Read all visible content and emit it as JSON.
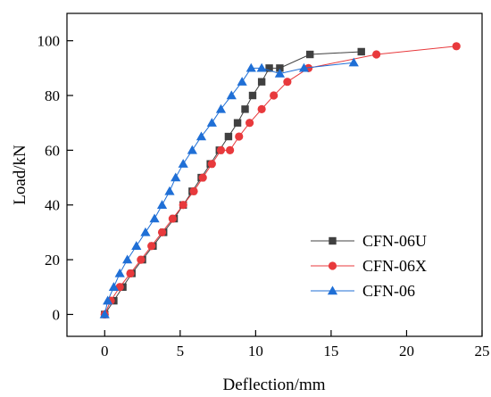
{
  "chart_data": {
    "type": "line",
    "title": "",
    "xlabel": "Deflection/mm",
    "ylabel": "Load/kN",
    "xlim": [
      -2.5,
      25
    ],
    "ylim": [
      -8,
      110
    ],
    "xticks": [
      0,
      5,
      10,
      15,
      20,
      25
    ],
    "yticks": [
      0,
      20,
      40,
      60,
      80,
      100
    ],
    "grid": false,
    "legend_position": "bottom-right",
    "series": [
      {
        "name": "CFN-06U",
        "color": "#404040",
        "marker": "square",
        "x": [
          0,
          0.6,
          1.2,
          1.8,
          2.5,
          3.2,
          3.9,
          4.6,
          5.2,
          5.8,
          6.4,
          7.0,
          7.6,
          8.2,
          8.8,
          9.3,
          9.8,
          10.4,
          10.9,
          11.6,
          13.6,
          17.0
        ],
        "y": [
          0,
          5,
          10,
          15,
          20,
          25,
          30,
          35,
          40,
          45,
          50,
          55,
          60,
          65,
          70,
          75,
          80,
          85,
          90,
          90,
          95,
          96
        ]
      },
      {
        "name": "CFN-06X",
        "color": "#e8393c",
        "marker": "circle",
        "x": [
          0,
          0.4,
          1.0,
          1.7,
          2.4,
          3.1,
          3.8,
          4.5,
          5.2,
          5.9,
          6.5,
          7.1,
          7.7,
          8.3,
          8.9,
          9.6,
          10.4,
          11.2,
          12.1,
          13.5,
          18.0,
          23.3
        ],
        "y": [
          0,
          5,
          10,
          15,
          20,
          25,
          30,
          35,
          40,
          45,
          50,
          55,
          60,
          60,
          65,
          70,
          75,
          80,
          85,
          90,
          95,
          98
        ]
      },
      {
        "name": "CFN-06",
        "color": "#1f6fd6",
        "marker": "triangle",
        "x": [
          0,
          0.2,
          0.6,
          1.0,
          1.5,
          2.1,
          2.7,
          3.3,
          3.8,
          4.3,
          4.7,
          5.2,
          5.8,
          6.4,
          7.1,
          7.7,
          8.4,
          9.1,
          9.7,
          10.4,
          11.6,
          13.2,
          16.5
        ],
        "y": [
          0,
          5,
          10,
          15,
          20,
          25,
          30,
          35,
          40,
          45,
          50,
          55,
          60,
          65,
          70,
          75,
          80,
          85,
          90,
          90,
          88,
          90,
          92
        ]
      }
    ]
  }
}
